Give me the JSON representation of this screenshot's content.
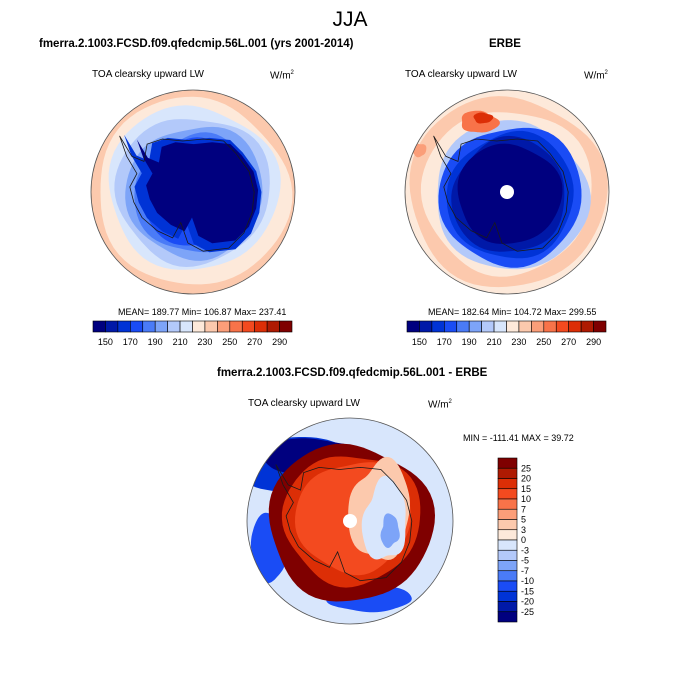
{
  "main_title": "JJA",
  "panels": [
    {
      "title": "fmerra.2.1003.FCSD.f09.qfedcmip.56L.001 (yrs 2001-2014)",
      "variable": "TOA clearsky upward LW",
      "units_base": "W/m",
      "units_sup": "2",
      "stats": "MEAN= 189.77  Min= 106.87  Max= 237.41"
    },
    {
      "title": "ERBE",
      "variable": "TOA clearsky upward LW",
      "units_base": "W/m",
      "units_sup": "2",
      "stats": "MEAN= 182.64  Min= 104.72  Max= 299.55"
    },
    {
      "title": "fmerra.2.1003.FCSD.f09.qfedcmip.56L.001 - ERBE",
      "variable": "TOA clearsky upward LW",
      "units_base": "W/m",
      "units_sup": "2",
      "stats": "MIN = -111.41 MAX =  39.72"
    }
  ],
  "chart_data": [
    {
      "type": "heatmap",
      "projection": "south-polar-stereographic",
      "title": "fmerra.2.1003.FCSD.f09.qfedcmip.56L.001 (yrs 2001-2014)",
      "variable": "TOA clearsky upward LW",
      "units": "W/m2",
      "mean": 189.77,
      "min": 106.87,
      "max": 237.41,
      "levels": [
        150,
        160,
        170,
        180,
        190,
        200,
        210,
        220,
        230,
        240,
        250,
        260,
        270,
        280,
        290
      ],
      "colorbar_labels": [
        "150",
        "170",
        "190",
        "210",
        "230",
        "250",
        "270",
        "290"
      ],
      "colorbar_orientation": "horizontal"
    },
    {
      "type": "heatmap",
      "projection": "south-polar-stereographic",
      "title": "ERBE",
      "variable": "TOA clearsky upward LW",
      "units": "W/m2",
      "mean": 182.64,
      "min": 104.72,
      "max": 299.55,
      "levels": [
        150,
        160,
        170,
        180,
        190,
        200,
        210,
        220,
        230,
        240,
        250,
        260,
        270,
        280,
        290
      ],
      "colorbar_labels": [
        "150",
        "170",
        "190",
        "210",
        "230",
        "250",
        "270",
        "290"
      ],
      "colorbar_orientation": "horizontal"
    },
    {
      "type": "heatmap",
      "projection": "south-polar-stereographic",
      "title": "fmerra.2.1003.FCSD.f09.qfedcmip.56L.001 - ERBE",
      "variable": "TOA clearsky upward LW",
      "units": "W/m2",
      "min": -111.41,
      "max": 39.72,
      "levels": [
        -25,
        -20,
        -15,
        -10,
        -7,
        -5,
        -3,
        0,
        3,
        5,
        7,
        10,
        15,
        20,
        25
      ],
      "colorbar_labels": [
        "25",
        "20",
        "15",
        "10",
        "7",
        "5",
        "3",
        "0",
        "-3",
        "-5",
        "-7",
        "-10",
        "-15",
        "-20",
        "-25"
      ],
      "colorbar_orientation": "vertical"
    }
  ],
  "colors": {
    "palette": [
      "#00007f",
      "#0019a8",
      "#0033d6",
      "#1a4cf5",
      "#4a7bf7",
      "#7da4f8",
      "#b3c9fa",
      "#d8e6fc",
      "#fde9da",
      "#fcc9ad",
      "#fb9e79",
      "#f87349",
      "#f34a1f",
      "#dc2e06",
      "#ae1a02",
      "#7f0000"
    ],
    "outline": "#555555",
    "coast": "#1a1a1a"
  }
}
